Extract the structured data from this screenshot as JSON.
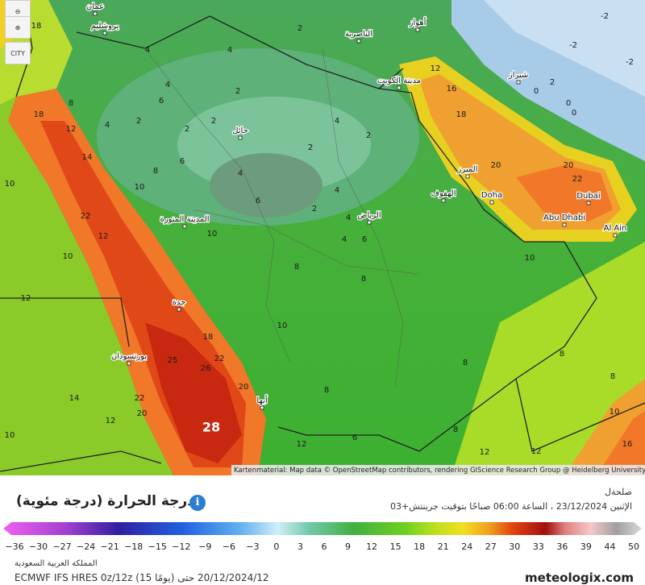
{
  "map": {
    "controls": [
      "CITY"
    ],
    "attribution": "Kartenmaterial: Map data © OpenStreetMap contributors, rendering GIScience Research Group @ Heidelberg University",
    "cities": [
      "عمان",
      "يروشليم",
      "الناصرية",
      "أهواز",
      "مدينة الكويت",
      "شيراز",
      "حائل",
      "المبرز",
      "الهفوف",
      "Doha",
      "Dubai",
      "Abu Dhabi",
      "Al Ain",
      "الرياض",
      "المدينة المنورة",
      "جدة",
      "بورتسودان",
      "أبها"
    ],
    "temperatures": [
      18,
      4,
      4,
      2,
      2,
      4,
      2,
      6,
      4,
      2,
      2,
      2,
      4,
      2,
      2,
      16,
      12,
      18,
      20,
      22,
      20,
      8,
      18,
      12,
      14,
      10,
      8,
      6,
      4,
      6,
      4,
      4,
      6,
      4,
      2,
      22,
      10,
      12,
      10,
      8,
      8,
      12,
      18,
      25,
      26,
      22,
      20,
      28,
      22,
      20,
      14,
      12,
      10,
      8,
      8,
      10,
      8,
      8,
      10,
      12,
      12,
      16,
      6,
      8,
      12,
      10,
      10,
      -2,
      -2,
      -2,
      2,
      0,
      0,
      0
    ]
  },
  "header": {
    "title": "درجة الحرارة (درجة مئوية)",
    "lead": "صلحةل",
    "datetime": "الإثنين 23/12/2024 ، الساعة 06:00 صباحًا بتوقيت جرينتش+03"
  },
  "legend": {
    "ticks": [
      "−36",
      "−30",
      "−27",
      "−24",
      "−21",
      "−18",
      "−15",
      "−12",
      "−9",
      "−6",
      "−3",
      "0",
      "3",
      "6",
      "9",
      "12",
      "15",
      "18",
      "21",
      "24",
      "27",
      "30",
      "33",
      "36",
      "39",
      "44",
      "50"
    ]
  },
  "footer": {
    "region": "المملكة العربية السعودية",
    "model": "ECMWF IFS HRES 0z/12z (15 يومًا) 20/12/2024/12 حتى",
    "brand": "meteologix.com"
  }
}
